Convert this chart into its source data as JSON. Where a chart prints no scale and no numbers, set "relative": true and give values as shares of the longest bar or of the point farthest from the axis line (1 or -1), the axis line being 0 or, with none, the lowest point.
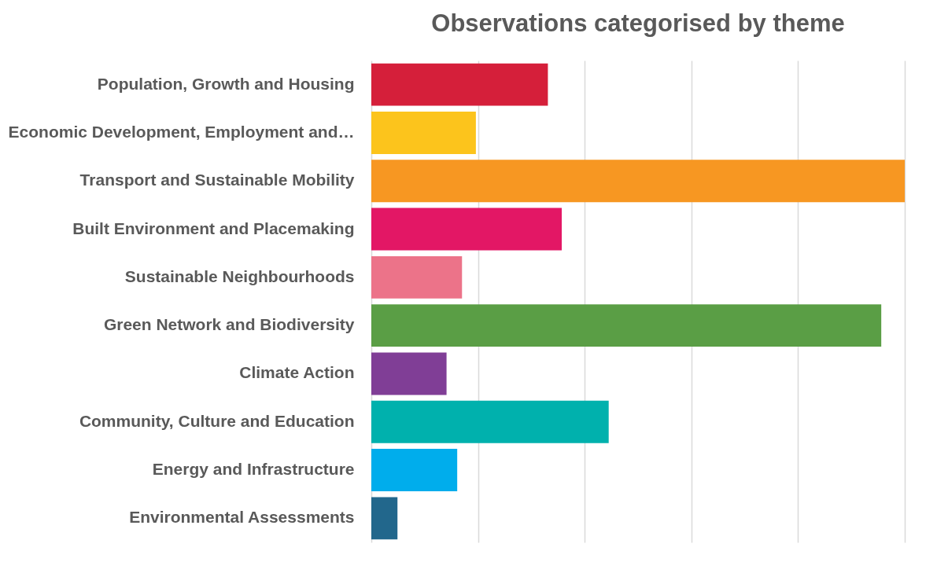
{
  "chart_data": {
    "type": "bar",
    "orientation": "horizontal",
    "relative": true,
    "title": "Observations categorised by theme",
    "categories": [
      "Population, Growth and Housing",
      "Economic Development, Employment and…",
      "Transport and Sustainable Mobility",
      "Built Environment and Placemaking",
      "Sustainable Neighbourhoods",
      "Green Network and Biodiversity",
      "Climate Action",
      "Community, Culture and Education",
      "Energy and Infrastructure",
      "Environmental Assessments"
    ],
    "values": [
      0.331,
      0.196,
      1,
      0.357,
      0.17,
      0.956,
      0.141,
      0.445,
      0.161,
      0.049
    ],
    "colors": [
      "#d51f3a",
      "#fcc41c",
      "#f79722",
      "#e31765",
      "#ec7389",
      "#5a9e45",
      "#803e96",
      "#00b1ad",
      "#00adec",
      "#22678c"
    ],
    "grid": true
  }
}
